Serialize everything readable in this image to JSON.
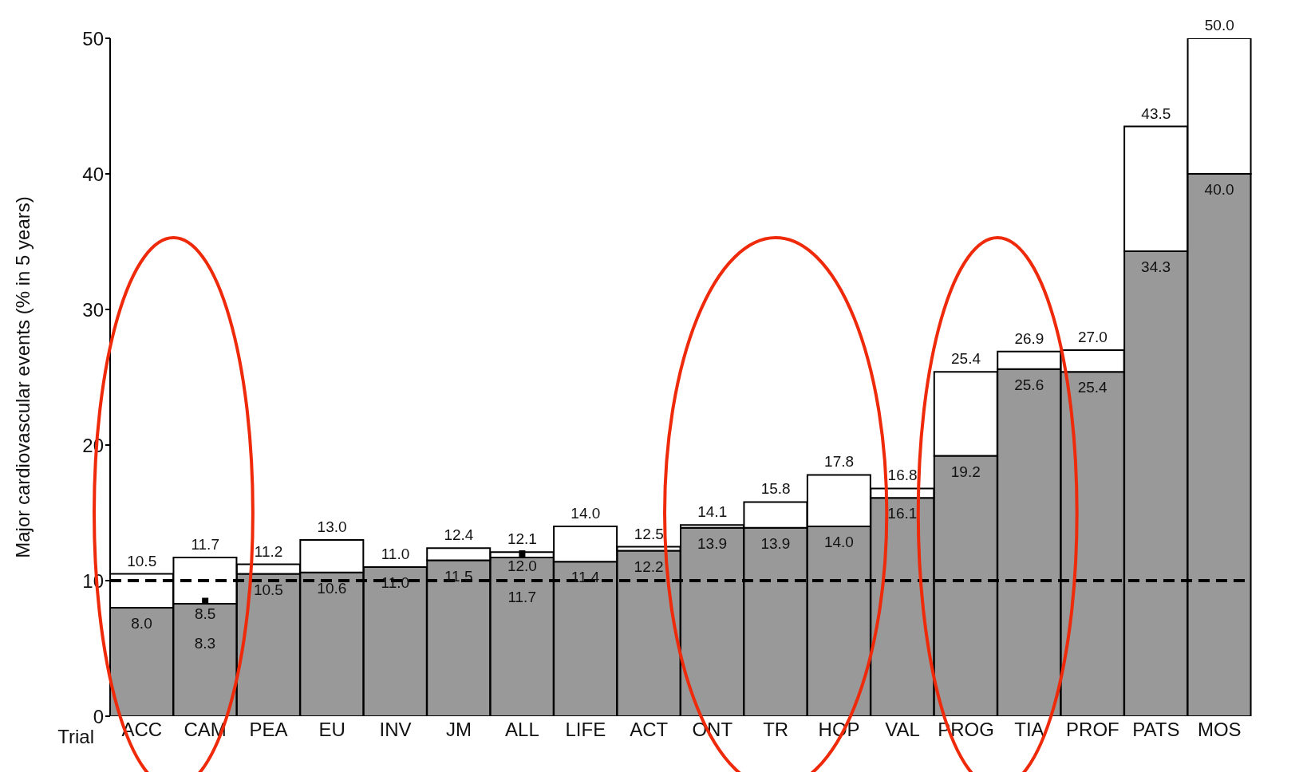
{
  "chart_data": {
    "type": "bar",
    "stacked": true,
    "ylabel": "Major cardiovascular events (% in 5 years)",
    "xlabel": "Trial",
    "categories": [
      "ACC",
      "CAM",
      "PEA",
      "EU",
      "INV",
      "JM",
      "ALL",
      "LIFE",
      "ACT",
      "ONT",
      "TR",
      "HOP",
      "VAL",
      "PROG",
      "TIA",
      "PROF",
      "PATS",
      "MOS"
    ],
    "series": [
      {
        "color": "#999999",
        "values": [
          8.0,
          8.3,
          10.5,
          10.6,
          11.0,
          11.5,
          11.7,
          11.4,
          12.2,
          13.9,
          13.9,
          14.0,
          16.1,
          19.2,
          25.6,
          25.4,
          34.3,
          40.0
        ],
        "value_labels": [
          "8.0",
          "8.3",
          "10.5",
          "10.6",
          "11.0",
          "11.5",
          "11.7",
          "11.4",
          "12.2",
          "13.9",
          "13.9",
          "14.0",
          "16.1",
          "19.2",
          "25.6",
          "25.4",
          "34.3",
          "40.0"
        ]
      },
      {
        "color": "#ffffff",
        "values": [
          2.5,
          3.4,
          0.7,
          2.4,
          0,
          0.9,
          0.4,
          2.6,
          0.3,
          0.2,
          1.9,
          3.8,
          0.7,
          6.2,
          1.3,
          1.6,
          9.2,
          10.0
        ]
      },
      {
        "type": "scatter",
        "color": "#000000",
        "marker": "square",
        "x": [
          "CAM",
          "ALL"
        ],
        "values": [
          8.5,
          12.0
        ],
        "value_labels": [
          "8.5",
          "12.0"
        ]
      }
    ],
    "totals": [
      "10.5",
      "11.7",
      "11.2",
      "13.0",
      "11.0",
      "12.4",
      "12.1",
      "14.0",
      "12.5",
      "14.1",
      "15.8",
      "17.8",
      "16.8",
      "25.4",
      "26.9",
      "27.0",
      "43.5",
      "50.0"
    ],
    "ylim": [
      0,
      50
    ],
    "yticks": [
      0,
      10,
      20,
      30,
      40,
      50
    ],
    "grid": false,
    "legend": false,
    "ref_lines": [
      {
        "axis": "y",
        "value": 10,
        "line_style": "dashed",
        "color": "#000000"
      }
    ]
  }
}
